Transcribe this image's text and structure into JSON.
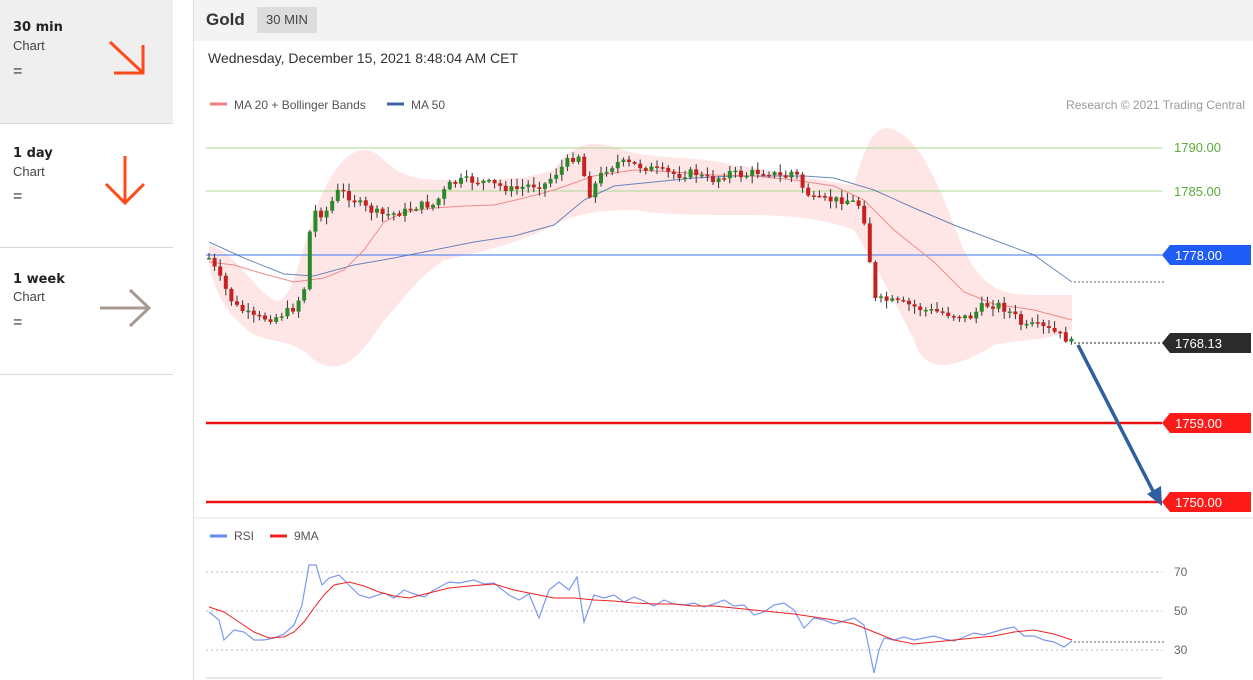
{
  "sidebar": {
    "items": [
      {
        "period": "30 min",
        "chart_label": "Chart",
        "status": "=",
        "arrow": "arrow-down-right-icon",
        "color": "#ff4b1a"
      },
      {
        "period": "1 day",
        "chart_label": "Chart",
        "status": "=",
        "arrow": "arrow-down-icon",
        "color": "#ff4b1a"
      },
      {
        "period": "1 week",
        "chart_label": "Chart",
        "status": "=",
        "arrow": "arrow-right-icon",
        "color": "#a89a90"
      }
    ]
  },
  "header": {
    "title": "Gold",
    "interval": "30 MIN"
  },
  "date": "Wednesday, December 15, 2021 8:48:04 AM CET",
  "legend": {
    "ma20": "MA 20 + Bollinger Bands",
    "ma50": "MA 50",
    "ma20_color": "#f08080",
    "ma50_color": "#3a63a8"
  },
  "credit": "Research © 2021 Trading Central",
  "levels": {
    "resistance2": "1790.00",
    "resistance1": "1785.00",
    "pivot": "1778.00",
    "last": "1768.13",
    "support1": "1759.00",
    "support2": "1750.00"
  },
  "rsi": {
    "legend_rsi": "RSI",
    "legend_ma": "9MA",
    "rsi_color": "#6688ee",
    "ma_color": "#ee2222",
    "ticks": [
      "70",
      "50",
      "30"
    ]
  },
  "chart_data": {
    "type": "candlestick",
    "title": "Gold",
    "price_scale": [
      1750,
      1790
    ],
    "reference_levels": [
      1790,
      1785,
      1778,
      1768.13,
      1759,
      1750
    ],
    "rsi_scale": [
      30,
      70
    ]
  }
}
